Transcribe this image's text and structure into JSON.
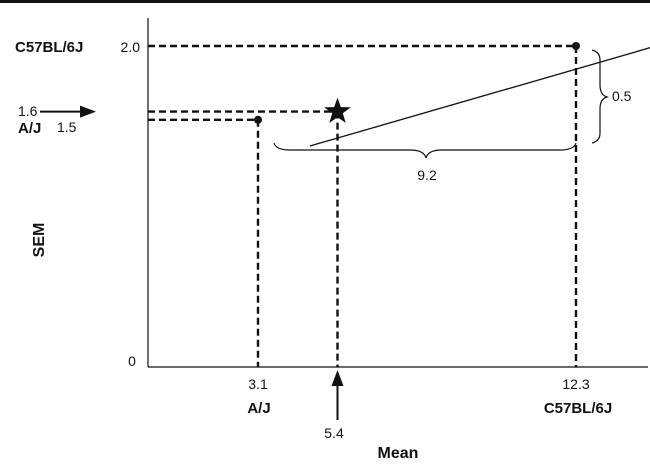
{
  "chart_data": {
    "type": "line",
    "xlabel": "Mean",
    "ylabel": "SEM",
    "origin_label": "0",
    "line": {
      "x": [
        4.6,
        15.6
      ],
      "y": [
        1.39,
        2.06
      ]
    },
    "points": [
      {
        "x": 3.1,
        "y": 1.55,
        "marker": "dot",
        "x_label": "3.1",
        "x_name": "A/J",
        "y_label": "1.5",
        "y_name": "A/J"
      },
      {
        "x": 12.3,
        "y": 2.0,
        "marker": "dot",
        "x_label": "12.3",
        "x_name": "C57BL/6J",
        "y_label": "2.0",
        "y_name": "C57BL/6J"
      }
    ],
    "star": {
      "x": 5.4,
      "y": 1.6,
      "x_label": "5.4",
      "y_label": "1.6"
    },
    "annotations": [
      {
        "text": "9.2",
        "type": "horizontal-brace"
      },
      {
        "text": "0.5",
        "type": "vertical-brace"
      }
    ]
  }
}
